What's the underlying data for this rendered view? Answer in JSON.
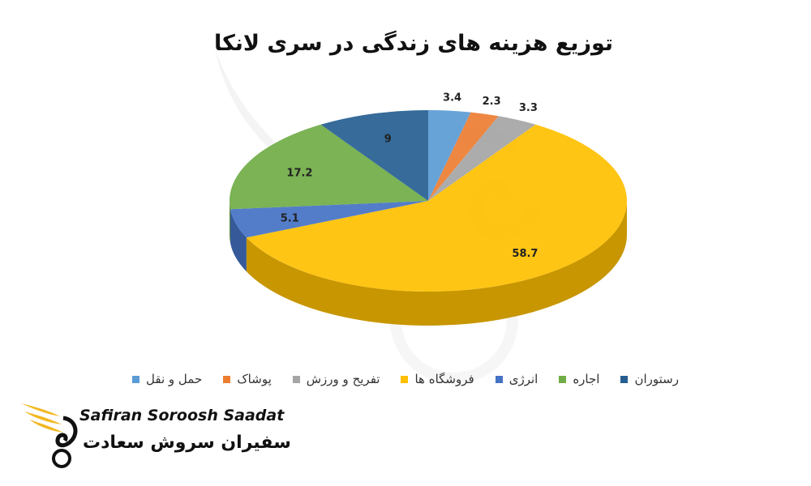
{
  "chart_data": {
    "type": "pie",
    "title": "توزیع هزینه های زندگی در سری لانکا",
    "slices": [
      {
        "label": "حمل و نقل",
        "value": 3.4,
        "color": "#5b9bd5"
      },
      {
        "label": "پوشاک",
        "value": 2.3,
        "color": "#ed7d31"
      },
      {
        "label": "تفریح و ورزش",
        "value": 3.3,
        "color": "#a5a5a5"
      },
      {
        "label": "فروشگاه ها",
        "value": 58.7,
        "color": "#ffc000"
      },
      {
        "label": "انرژی",
        "value": 5.1,
        "color": "#4472c4"
      },
      {
        "label": "اجاره",
        "value": 17.2,
        "color": "#70ad47"
      },
      {
        "label": "رستوران",
        "value": 9,
        "color": "#255e91"
      }
    ],
    "legend_order": [
      "رستوران",
      "اجاره",
      "انرژی",
      "فروشگاه ها",
      "تفریح و ورزش",
      "پوشاک",
      "حمل و نقل"
    ],
    "legend_position": "bottom",
    "style": "3d"
  },
  "logo": {
    "name_en": "Safiran Soroosh Saadat",
    "name_fa": "سفیران سروش سعادت",
    "accent_color": "#f2b822"
  }
}
